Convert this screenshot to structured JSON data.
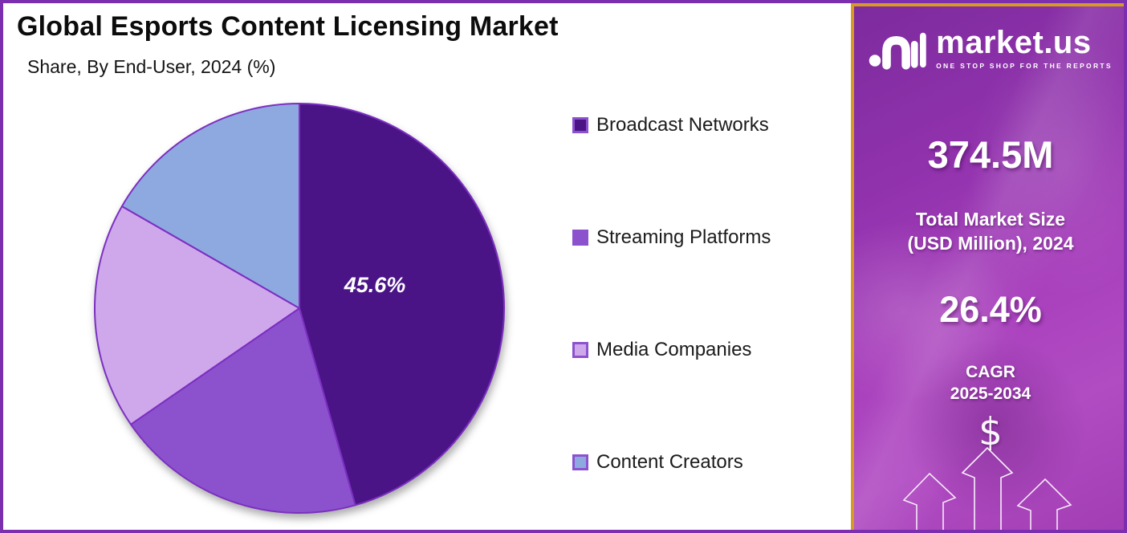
{
  "page": {
    "title": "Global Esports Content Licensing Market",
    "subtitle": "Share, By End-User, 2024 (%)"
  },
  "chart_data": {
    "type": "pie",
    "title": "Global Esports Content Licensing Market",
    "subtitle": "Share, By End-User, 2024 (%)",
    "categories": [
      "Broadcast Networks",
      "Streaming Platforms",
      "Media Companies",
      "Content Creators"
    ],
    "values": [
      45.6,
      19.8,
      17.9,
      16.7
    ],
    "value_labels": [
      "45.6%",
      "",
      "",
      ""
    ],
    "share_label": "45.6%",
    "colors": [
      "#4A1487",
      "#8C52CE",
      "#CFA8EC",
      "#8EA9E0"
    ],
    "slice_stroke": "#7C2FC0",
    "legend_position": "right",
    "start_angle_deg": 0,
    "direction": "clockwise"
  },
  "sidebar": {
    "logo_text": "market.us",
    "logo_tagline": "ONE STOP SHOP FOR THE REPORTS",
    "market_size_value": "374.5M",
    "market_size_label_line1": "Total Market Size",
    "market_size_label_line2": "(USD Million), 2024",
    "cagr_value": "26.4%",
    "cagr_label_line1": "CAGR",
    "cagr_label_line2": "2025-2034",
    "currency_symbol": "$",
    "accent_border": "#D79A23",
    "bg_color": "#A03CB8"
  },
  "frame": {
    "border_color": "#7B2EAD"
  }
}
